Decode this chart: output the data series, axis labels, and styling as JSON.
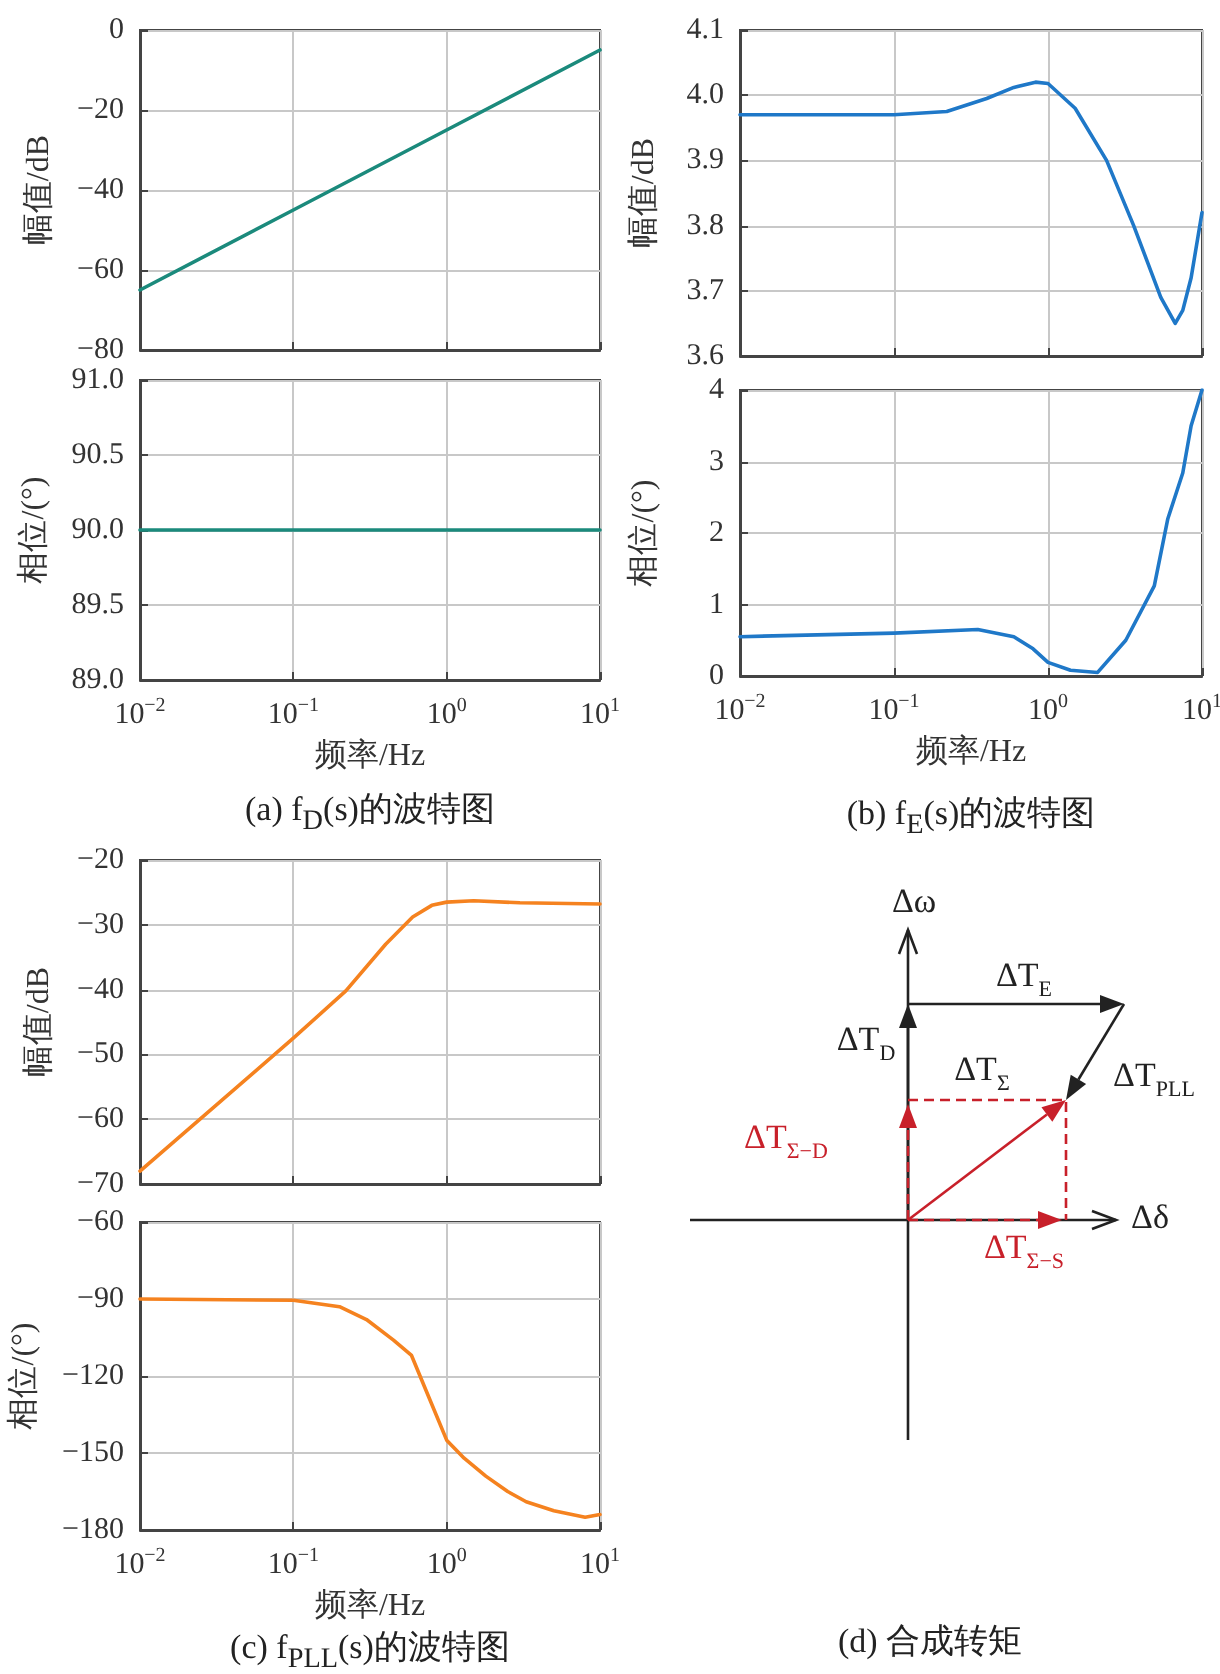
{
  "chart_data": [
    {
      "type": "line",
      "ylabel": "幅值/dB",
      "x": [
        0.01,
        0.1,
        1,
        10
      ],
      "values": [
        -65,
        -45,
        -25,
        -5
      ],
      "color": "#1b8a7c",
      "log": "x",
      "grid": true,
      "tick_labels": "y",
      "xlim": [
        0.01,
        10
      ],
      "xticks": [
        {
          "value": 0.01,
          "label": null
        },
        {
          "value": 0.1,
          "label": null
        },
        {
          "value": 1,
          "label": null
        },
        {
          "value": 10,
          "label": null
        }
      ],
      "ylim": [
        -80,
        0
      ],
      "yticks": [
        {
          "value": -80,
          "label": "−80"
        },
        {
          "value": -60,
          "label": "−60"
        },
        {
          "value": -40,
          "label": "−40"
        },
        {
          "value": -20,
          "label": "−20"
        },
        0
      ]
    },
    {
      "type": "line",
      "ylabel": "相位/(°)",
      "xlabel": "频率/Hz",
      "x": [
        0.01,
        10
      ],
      "values": [
        90,
        90
      ],
      "color": "#1b8a7c",
      "log": "x",
      "grid": true,
      "xlim": [
        0.01,
        10
      ],
      "xticks": [
        {
          "value": 0.01,
          "label": "10$^{−2}$"
        },
        {
          "value": 0.1,
          "label": "10$^{−1}$"
        },
        {
          "value": 1,
          "label": "10$^{0}$"
        },
        {
          "value": 10,
          "label": "10$^{1}$"
        }
      ],
      "ylim": [
        89,
        91
      ],
      "yticks": [
        {
          "value": 89,
          "label": "89.0"
        },
        {
          "value": 89.5,
          "label": "89.5"
        },
        {
          "value": 90,
          "label": "90.0"
        },
        {
          "value": 90.5,
          "label": "90.5"
        },
        {
          "value": 91,
          "label": "91.0"
        }
      ],
      "annotations": [
        "(a) f$_{D}$(s)的波特图"
      ]
    },
    {
      "type": "line",
      "ylabel": "幅值/dB",
      "x": [
        0.01,
        0.1,
        0.22,
        0.4,
        0.6,
        0.83,
        1,
        1.5,
        2.4,
        3.6,
        5.4,
        6.7,
        7.5,
        8.5,
        10
      ],
      "values": [
        3.97,
        3.97,
        3.975,
        3.995,
        4.012,
        4.02,
        4.018,
        3.98,
        3.9,
        3.8,
        3.69,
        3.65,
        3.67,
        3.72,
        3.82
      ],
      "color": "#1f78c8",
      "log": "x",
      "grid": true,
      "tick_labels": "y",
      "xlim": [
        0.01,
        10
      ],
      "xticks": [
        {
          "value": 0.01,
          "label": null
        },
        {
          "value": 0.1,
          "label": null
        },
        {
          "value": 1,
          "label": null
        },
        {
          "value": 10,
          "label": null
        }
      ],
      "ylim": [
        3.6,
        4.1
      ],
      "yticks": [
        {
          "value": 3.6,
          "label": "3.6"
        },
        {
          "value": 3.7,
          "label": "3.7"
        },
        {
          "value": 3.8,
          "label": "3.8"
        },
        {
          "value": 3.9,
          "label": "3.9"
        },
        {
          "value": 4,
          "label": "4.0"
        },
        {
          "value": 4.1,
          "label": "4.1"
        }
      ]
    },
    {
      "type": "line",
      "ylabel": "相位/(°)",
      "xlabel": "频率/Hz",
      "x": [
        0.01,
        0.1,
        0.35,
        0.6,
        0.8,
        1,
        1.4,
        2.1,
        3.2,
        4.9,
        6,
        7.5,
        8.5,
        10
      ],
      "values": [
        0.55,
        0.6,
        0.65,
        0.55,
        0.38,
        0.19,
        0.08,
        0.05,
        0.5,
        1.26,
        2.2,
        2.84,
        3.5,
        4
      ],
      "color": "#1f78c8",
      "log": "x",
      "grid": true,
      "xlim": [
        0.01,
        10
      ],
      "xticks": [
        {
          "value": 0.01,
          "label": "10$^{−2}$"
        },
        {
          "value": 0.1,
          "label": "10$^{−1}$"
        },
        {
          "value": 1,
          "label": "10$^{0}$"
        },
        {
          "value": 10,
          "label": "10$^{1}$"
        }
      ],
      "ylim": [
        0,
        4
      ],
      "yticks": [
        0,
        1,
        2,
        3,
        4
      ],
      "annotations": [
        "(b) f$_{E}$(s)的波特图"
      ]
    },
    {
      "type": "line",
      "ylabel": "幅值/dB",
      "x": [
        0.01,
        0.1,
        0.22,
        0.4,
        0.6,
        0.8,
        1,
        1.5,
        3,
        10
      ],
      "values": [
        -68,
        -47.5,
        -40.2,
        -33,
        -28.8,
        -27,
        -26.5,
        -26.3,
        -26.6,
        -26.8
      ],
      "color": "#f5821f",
      "log": "x",
      "grid": true,
      "tick_labels": "y",
      "xlim": [
        0.01,
        10
      ],
      "xticks": [
        {
          "value": 0.01,
          "label": null
        },
        {
          "value": 0.1,
          "label": null
        },
        {
          "value": 1,
          "label": null
        },
        {
          "value": 10,
          "label": null
        }
      ],
      "ylim": [
        -70,
        -20
      ],
      "yticks": [
        {
          "value": -70,
          "label": "−70"
        },
        {
          "value": -60,
          "label": "−60"
        },
        {
          "value": -50,
          "label": "−50"
        },
        {
          "value": -40,
          "label": "−40"
        },
        {
          "value": -30,
          "label": "−30"
        },
        {
          "value": -20,
          "label": "−20"
        }
      ]
    },
    {
      "type": "line",
      "ylabel": "相位/(°)",
      "xlabel": "频率/Hz",
      "x": [
        0.01,
        0.1,
        0.2,
        0.3,
        0.45,
        0.59,
        0.75,
        1,
        1.3,
        1.8,
        2.5,
        3.3,
        5,
        8,
        10
      ],
      "values": [
        -90,
        -90.5,
        -93,
        -98,
        -106,
        -112,
        -127,
        -145,
        -152,
        -159,
        -165,
        -169,
        -172.5,
        -175,
        -174
      ],
      "color": "#f5821f",
      "log": "x",
      "grid": true,
      "xlim": [
        0.01,
        10
      ],
      "xticks": [
        {
          "value": 0.01,
          "label": "10$^{−2}$"
        },
        {
          "value": 0.1,
          "label": "10$^{−1}$"
        },
        {
          "value": 1,
          "label": "10$^{0}$"
        },
        {
          "value": 10,
          "label": "10$^{1}$"
        }
      ],
      "ylim": [
        -180,
        -60
      ],
      "yticks": [
        {
          "value": -180,
          "label": "−180"
        },
        {
          "value": -150,
          "label": "−150"
        },
        {
          "value": -120,
          "label": "−120"
        },
        {
          "value": -90,
          "label": "−90"
        },
        {
          "value": -60,
          "label": "−60"
        }
      ],
      "annotations": [
        "(c) f$_{PLL}$(s)的波特图"
      ]
    },
    {
      "type": "other",
      "annotations": [
        "Δω",
        "ΔT$_{E}$",
        "ΔT$_{D}$",
        "ΔT$_{PLL}$",
        "ΔT$_{Σ}$",
        "ΔT$_{Σ−D}$",
        "ΔT$_{Σ−S}$",
        "Δδ",
        "(d) 合成转矩"
      ]
    }
  ]
}
